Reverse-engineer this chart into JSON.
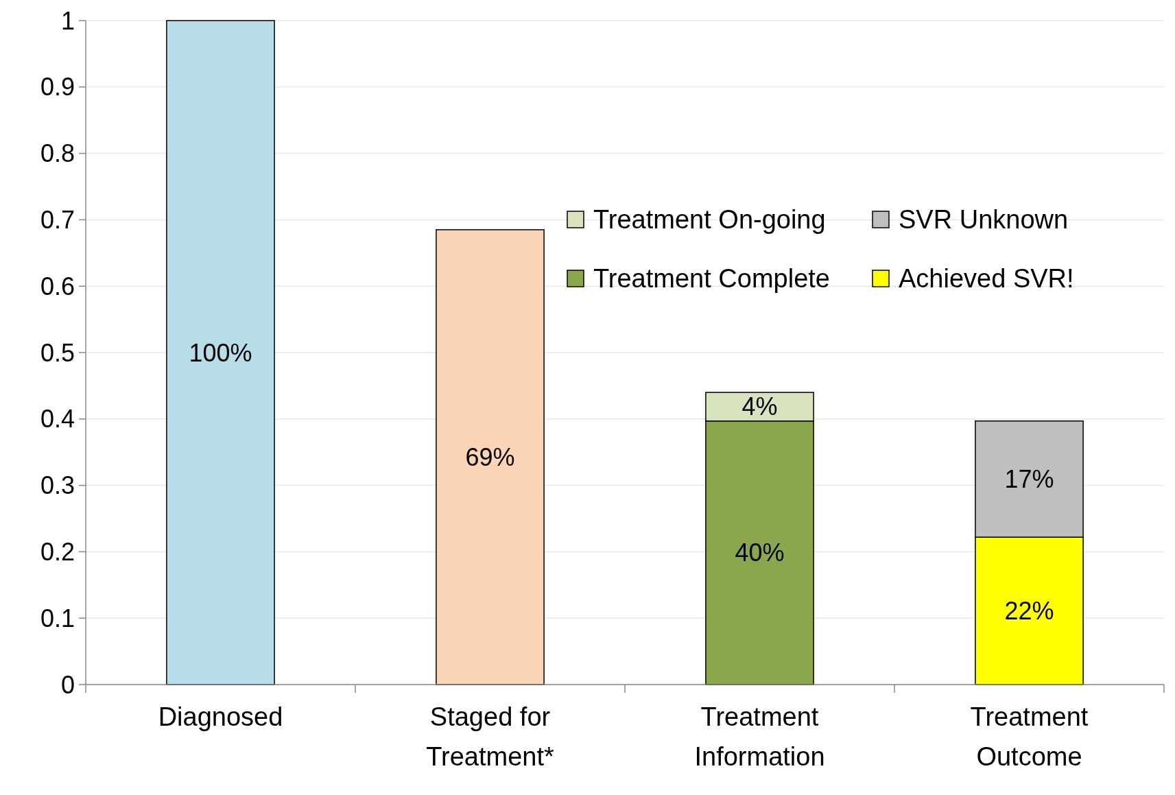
{
  "chart_data": {
    "type": "bar",
    "stacked": true,
    "categories": [
      "Diagnosed",
      "Staged for Treatment*",
      "Treatment Information",
      "Treatment Outcome"
    ],
    "series": [
      {
        "color": "#b7dde8",
        "values": [
          1,
          null,
          null,
          null
        ],
        "value_labels": [
          "100%",
          null,
          null,
          null
        ]
      },
      {
        "color": "#fbd5b5",
        "values": [
          null,
          0.685,
          null,
          null
        ],
        "value_labels": [
          null,
          "69%",
          null,
          null
        ]
      },
      {
        "name": "Treatment Complete",
        "color": "#8aa74e",
        "values": [
          null,
          null,
          0.397,
          null
        ],
        "value_labels": [
          null,
          null,
          "40%",
          null
        ]
      },
      {
        "name": "Achieved SVR!",
        "color": "#ffff00",
        "values": [
          null,
          null,
          null,
          0.222
        ],
        "value_labels": [
          null,
          null,
          null,
          "22%"
        ]
      },
      {
        "name": "Treatment On-going",
        "color": "#d7e4bd",
        "values": [
          null,
          null,
          0.043,
          null
        ],
        "value_labels": [
          null,
          null,
          "4%",
          null
        ]
      },
      {
        "name": "SVR Unknown",
        "color": "#bfbfbf",
        "values": [
          null,
          null,
          null,
          0.175
        ],
        "value_labels": [
          null,
          null,
          null,
          "17%"
        ]
      }
    ],
    "ylim": [
      0,
      1
    ],
    "yticks": [
      0,
      0.1,
      0.2,
      0.3,
      0.4,
      0.5,
      0.6,
      0.7,
      0.8,
      0.9,
      1
    ],
    "grid": "y",
    "legend": "top right"
  }
}
